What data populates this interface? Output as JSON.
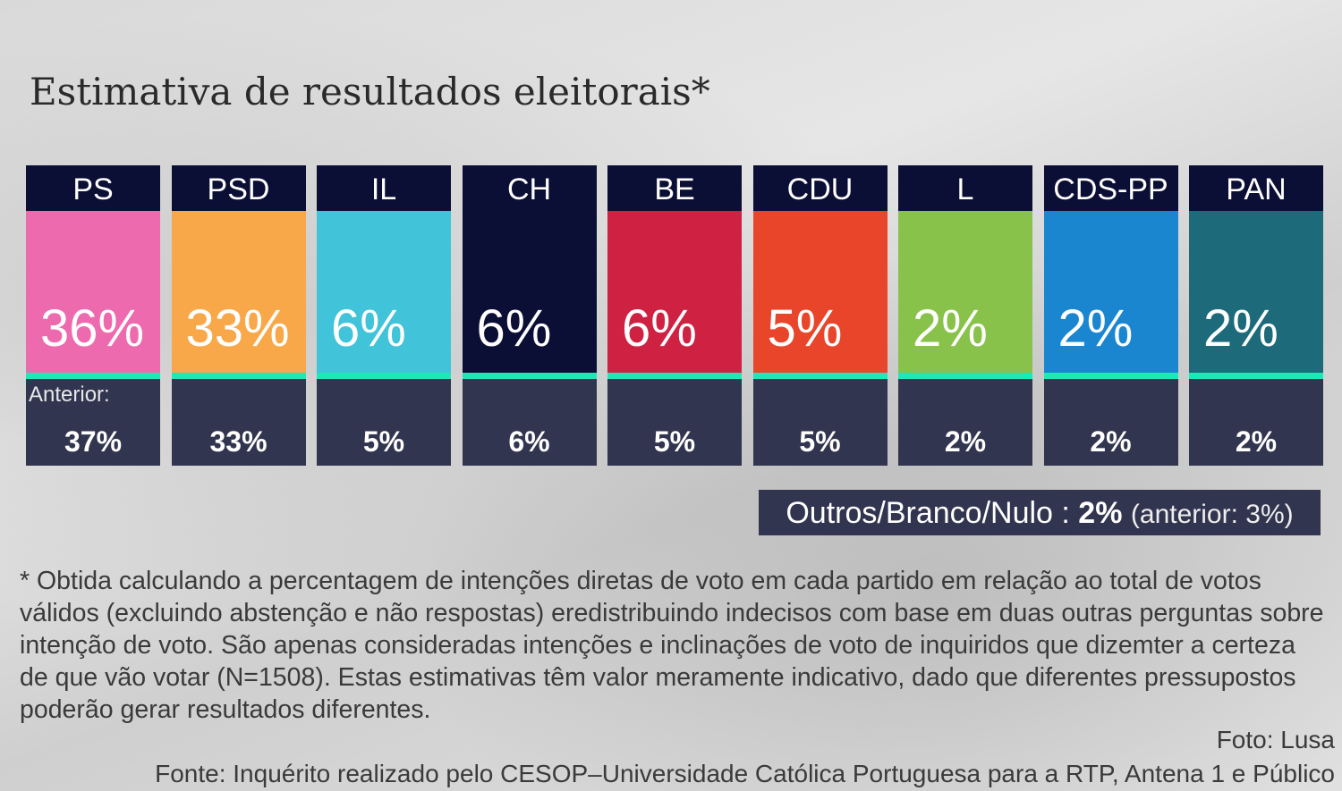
{
  "chart_data": {
    "type": "table",
    "title": "Estimativa de resultados eleitorais*",
    "categories": [
      "PS",
      "PSD",
      "IL",
      "CH",
      "BE",
      "CDU",
      "L",
      "CDS-PP",
      "PAN"
    ],
    "series": [
      {
        "name": "",
        "values": [
          36,
          33,
          6,
          6,
          6,
          5,
          2,
          2,
          2
        ]
      },
      {
        "name": "Anterior:",
        "values": [
          37,
          33,
          5,
          6,
          5,
          5,
          2,
          2,
          2
        ]
      }
    ],
    "labels": [
      "36%",
      "33%",
      "6%",
      "6%",
      "6%",
      "5%",
      "2%",
      "2%",
      "2%"
    ],
    "previous_labels": [
      "37%",
      "33%",
      "5%",
      "6%",
      "5%",
      "5%",
      "2%",
      "2%",
      "2%"
    ],
    "colors": [
      "#ee6aaf",
      "#f8a849",
      "#41c3d9",
      "#0c0f35",
      "#cf2142",
      "#e8452a",
      "#88c24a",
      "#1a86cf",
      "#1c6a7a"
    ],
    "previous_label": "Anterior:"
  },
  "others": {
    "label": "Outros/Branco/Nulo :",
    "value": "2%",
    "previous": "(anterior: 3%)"
  },
  "note": "* Obtida calculando a percentagem de intenções diretas de voto em cada partido em relação ao total de votos válidos (excluindo abstenção e não respostas) eredistribuindo indecisos com base em duas outras perguntas sobre intenção de voto. São apenas consideradas intenções e inclinações de voto de inquiridos que dizemter a certeza de que vão votar (N=1508). Estas estimativas têm valor meramente indicativo, dado que diferentes pressupostos poderão gerar resultados diferentes.",
  "photo": "Foto: Lusa",
  "source": "Fonte: Inquérito realizado pelo CESOP–Universidade Católica Portuguesa para a RTP, Antena 1 e Público"
}
